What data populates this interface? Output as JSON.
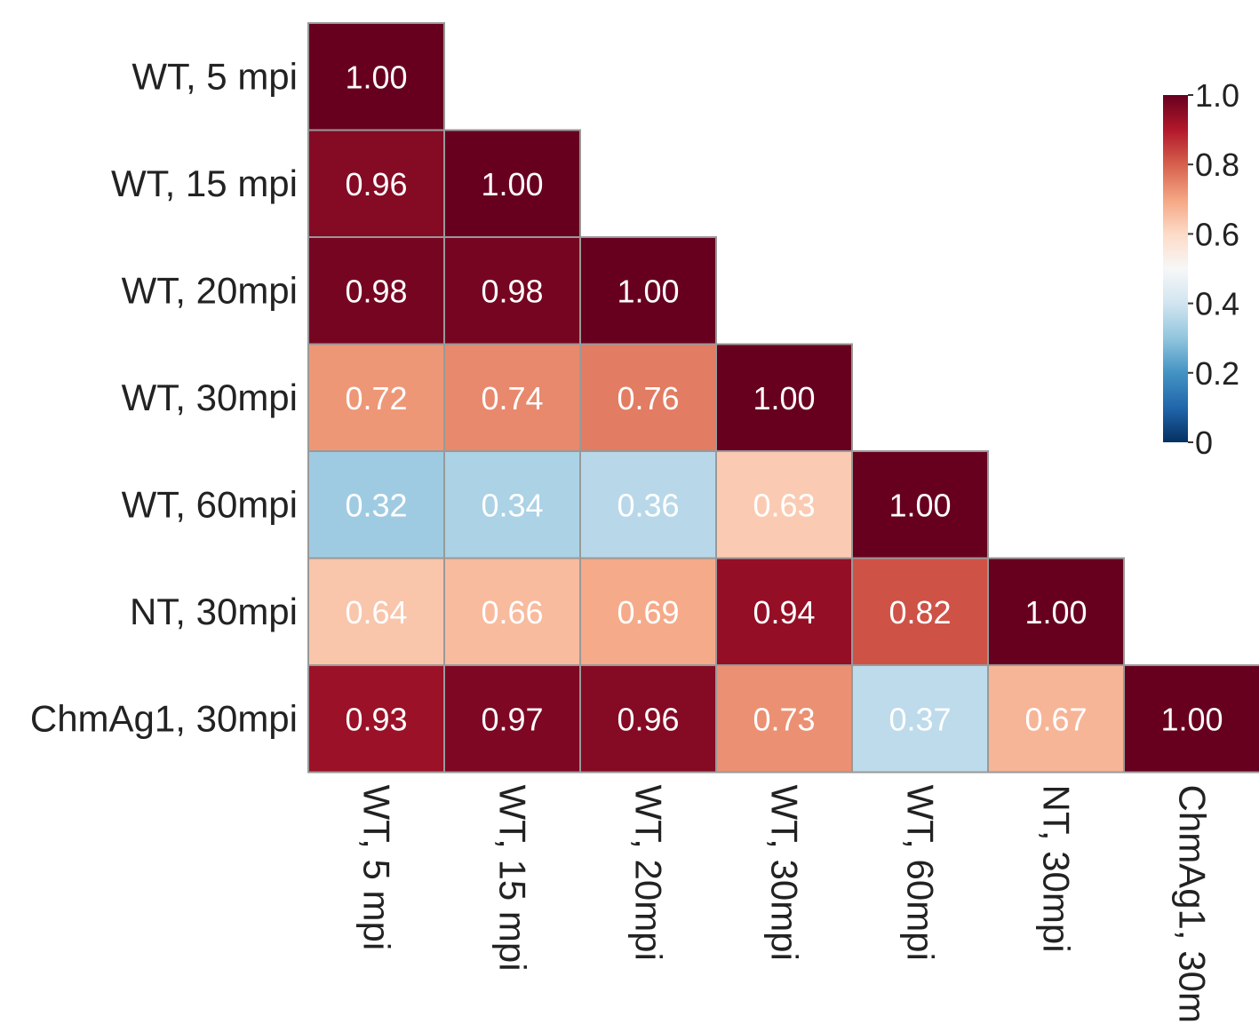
{
  "chart_data": {
    "type": "heatmap",
    "layout": "lower-triangular",
    "rows": [
      "WT, 5 mpi",
      "WT, 15 mpi",
      "WT, 20mpi",
      "WT, 30mpi",
      "WT, 60mpi",
      "NT, 30mpi",
      "ChmAg1, 30mpi"
    ],
    "columns": [
      "WT, 5 mpi",
      "WT, 15 mpi",
      "WT, 20mpi",
      "WT, 30mpi",
      "WT, 60mpi",
      "NT, 30mpi",
      "ChmAg1, 30m"
    ],
    "values": [
      [
        1.0
      ],
      [
        0.96,
        1.0
      ],
      [
        0.98,
        0.98,
        1.0
      ],
      [
        0.72,
        0.74,
        0.76,
        1.0
      ],
      [
        0.32,
        0.34,
        0.36,
        0.63,
        1.0
      ],
      [
        0.64,
        0.66,
        0.69,
        0.94,
        0.82,
        1.0
      ],
      [
        0.93,
        0.97,
        0.96,
        0.73,
        0.37,
        0.67,
        1.0
      ]
    ],
    "value_labels": [
      [
        "1.00"
      ],
      [
        "0.96",
        "1.00"
      ],
      [
        "0.98",
        "0.98",
        "1.00"
      ],
      [
        "0.72",
        "0.74",
        "0.76",
        "1.00"
      ],
      [
        "0.32",
        "0.34",
        "0.36",
        "0.63",
        "1.00"
      ],
      [
        "0.64",
        "0.66",
        "0.69",
        "0.94",
        "0.82",
        "1.00"
      ],
      [
        "0.93",
        "0.97",
        "0.96",
        "0.73",
        "0.37",
        "0.67",
        "1.00"
      ]
    ],
    "colorbar": {
      "range": [
        0,
        1.0
      ],
      "ticks": [
        0,
        0.2,
        0.4,
        0.6,
        0.8,
        1.0
      ],
      "tick_labels": [
        "0",
        "0.2",
        "0.4",
        "0.6",
        "0.8",
        "1.0"
      ],
      "colormap_stops": [
        {
          "value": 0.0,
          "color": "#053061"
        },
        {
          "value": 0.1,
          "color": "#2166ac"
        },
        {
          "value": 0.2,
          "color": "#4393c3"
        },
        {
          "value": 0.3,
          "color": "#92c5de"
        },
        {
          "value": 0.4,
          "color": "#d1e5f0"
        },
        {
          "value": 0.5,
          "color": "#f7f7f7"
        },
        {
          "value": 0.6,
          "color": "#fddbc7"
        },
        {
          "value": 0.7,
          "color": "#f4a582"
        },
        {
          "value": 0.8,
          "color": "#d6604d"
        },
        {
          "value": 0.9,
          "color": "#b2182b"
        },
        {
          "value": 1.0,
          "color": "#67001f"
        }
      ],
      "placement": "right"
    },
    "grid": true,
    "cell_border_color": "#999999"
  }
}
